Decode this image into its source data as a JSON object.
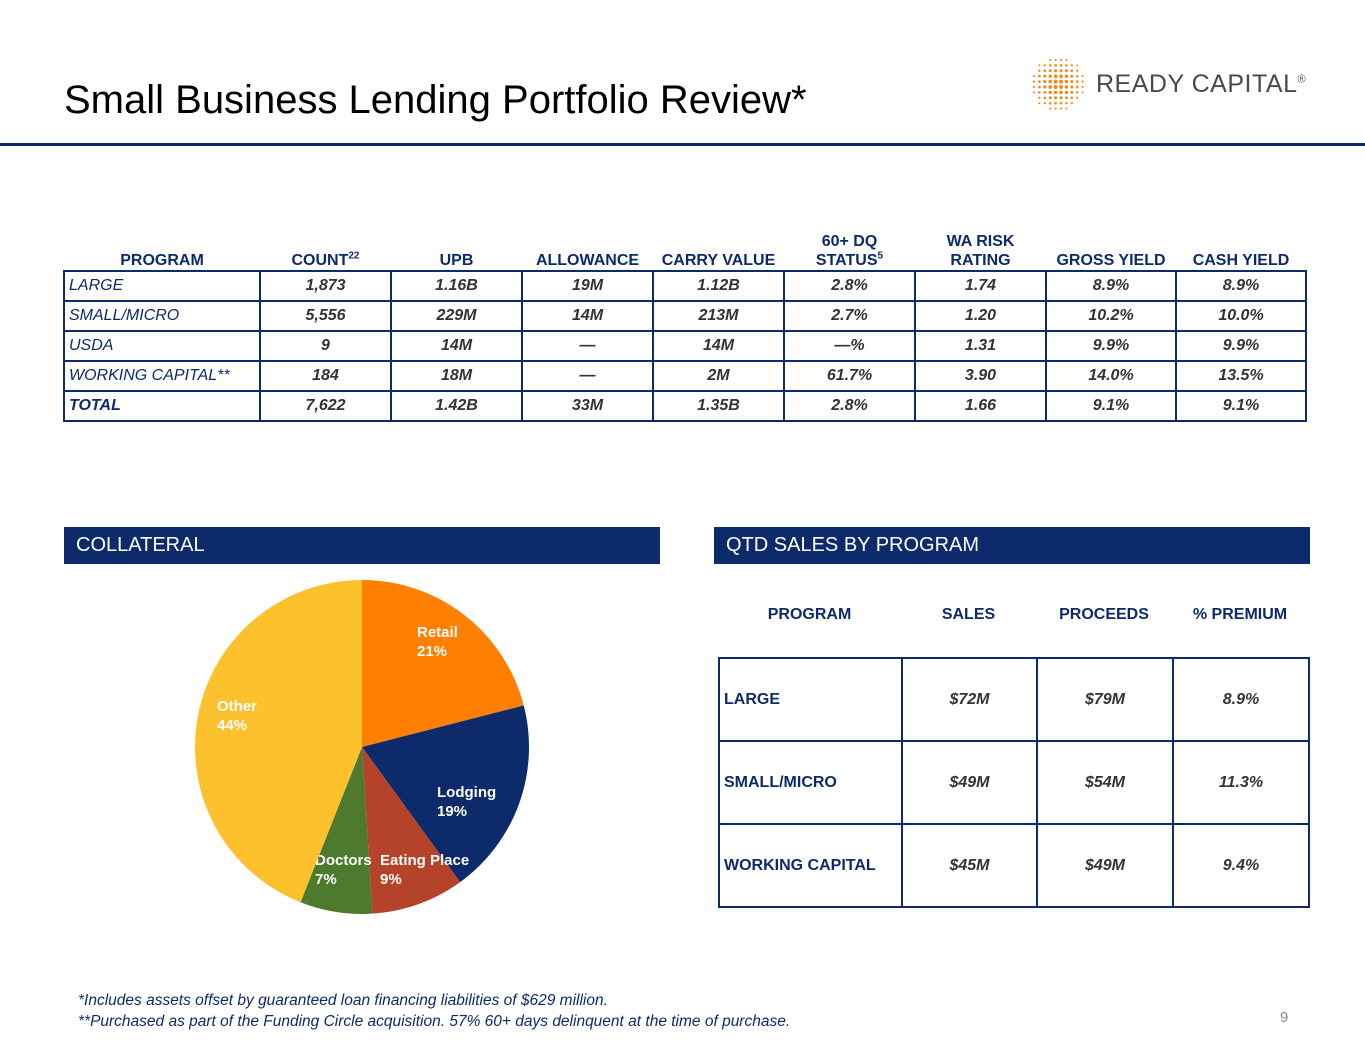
{
  "header": {
    "title": "Small Business Lending Portfolio Review*",
    "logo_text": "READY CAPITAL",
    "logo_mark": "®"
  },
  "portfolio": {
    "columns": [
      {
        "label": "PROGRAM",
        "sup": ""
      },
      {
        "label": "COUNT",
        "sup": "22"
      },
      {
        "label": "UPB",
        "sup": ""
      },
      {
        "label": "ALLOWANCE",
        "sup": ""
      },
      {
        "label": "CARRY VALUE",
        "sup": ""
      },
      {
        "label": "60+ DQ STATUS",
        "sup": "5"
      },
      {
        "label": "WA RISK RATING",
        "sup": ""
      },
      {
        "label": "GROSS YIELD",
        "sup": ""
      },
      {
        "label": "CASH YIELD",
        "sup": ""
      }
    ],
    "rows": [
      [
        "LARGE",
        "1,873",
        "1.16B",
        "19M",
        "1.12B",
        "2.8%",
        "1.74",
        "8.9%",
        "8.9%"
      ],
      [
        "SMALL/MICRO",
        "5,556",
        "229M",
        "14M",
        "213M",
        "2.7%",
        "1.20",
        "10.2%",
        "10.0%"
      ],
      [
        "USDA",
        "9",
        "14M",
        "—",
        "14M",
        "—%",
        "1.31",
        "9.9%",
        "9.9%"
      ],
      [
        "WORKING CAPITAL**",
        "184",
        "18M",
        "—",
        "2M",
        "61.7%",
        "3.90",
        "14.0%",
        "13.5%"
      ],
      [
        "TOTAL",
        "7,622",
        "1.42B",
        "33M",
        "1.35B",
        "2.8%",
        "1.66",
        "9.1%",
        "9.1%"
      ]
    ]
  },
  "collateral": {
    "band_label": "COLLATERAL"
  },
  "chart_data": {
    "type": "pie",
    "title": "COLLATERAL",
    "slices": [
      {
        "label": "Retail",
        "value": 21,
        "display": "21%",
        "color": "#ff7f00"
      },
      {
        "label": "Lodging",
        "value": 19,
        "display": "19%",
        "color": "#0d2a6b"
      },
      {
        "label": "Eating Place",
        "value": 9,
        "display": "9%",
        "color": "#b5432a"
      },
      {
        "label": "Doctors",
        "value": 7,
        "display": "7%",
        "color": "#4d7a2c"
      },
      {
        "label": "Other",
        "value": 44,
        "display": "44%",
        "color": "#fdc12d"
      }
    ]
  },
  "qtd_sales": {
    "band_label": "QTD SALES BY PROGRAM",
    "columns": [
      "PROGRAM",
      "SALES",
      "PROCEEDS",
      "% PREMIUM"
    ],
    "rows": [
      [
        "LARGE",
        "$72M",
        "$79M",
        "8.9%"
      ],
      [
        "SMALL/MICRO",
        "$49M",
        "$54M",
        "11.3%"
      ],
      [
        "WORKING CAPITAL",
        "$45M",
        "$49M",
        "9.4%"
      ]
    ]
  },
  "footnotes": {
    "line1": "*Includes assets offset by guaranteed loan financing liabilities of $629 million.",
    "line2": "**Purchased as part of the Funding Circle acquisition. 57% 60+ days delinquent at the time of purchase."
  },
  "page_number": "9"
}
